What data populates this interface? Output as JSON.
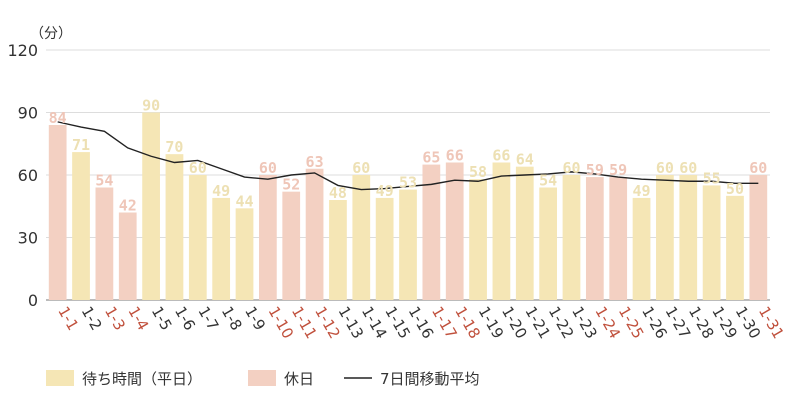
{
  "chart_data": {
    "type": "bar",
    "unit_label": "（分）",
    "ylim": [
      0,
      120
    ],
    "yticks": [
      "0",
      "30",
      "60",
      "90",
      "120"
    ],
    "grid": true,
    "categories": [
      "1-1",
      "1-2",
      "1-3",
      "1-4",
      "1-5",
      "1-6",
      "1-7",
      "1-8",
      "1-9",
      "1-10",
      "1-11",
      "1-12",
      "1-13",
      "1-14",
      "1-15",
      "1-16",
      "1-17",
      "1-18",
      "1-19",
      "1-20",
      "1-21",
      "1-22",
      "1-23",
      "1-24",
      "1-25",
      "1-26",
      "1-27",
      "1-28",
      "1-29",
      "1-30",
      "1-31"
    ],
    "values": [
      84,
      71,
      54,
      42,
      90,
      70,
      60,
      49,
      44,
      60,
      52,
      63,
      48,
      60,
      49,
      53,
      65,
      66,
      58,
      66,
      64,
      54,
      60,
      59,
      59,
      49,
      60,
      60,
      55,
      50,
      60
    ],
    "holiday": [
      true,
      false,
      true,
      true,
      false,
      false,
      false,
      false,
      false,
      true,
      true,
      true,
      false,
      false,
      false,
      false,
      true,
      true,
      false,
      false,
      false,
      false,
      false,
      true,
      true,
      false,
      false,
      false,
      false,
      false,
      true
    ],
    "moving_average": [
      85.5,
      83,
      81,
      73,
      69,
      66,
      67,
      63,
      59,
      58,
      60,
      61,
      55,
      53,
      53.5,
      54.5,
      55.5,
      57.5,
      57,
      59.5,
      60,
      60.5,
      61.5,
      60.5,
      59,
      58,
      57.5,
      57,
      57,
      56,
      56
    ],
    "legend": [
      {
        "label": "待ち時間（平日）",
        "kind": "bar-weekday"
      },
      {
        "label": "休日",
        "kind": "bar-holiday"
      },
      {
        "label": "7日間移動平均",
        "kind": "line"
      }
    ],
    "legend_position": "bottom-left",
    "colors": {
      "weekday": "#f5e6b5",
      "holiday": "#f3d0c2",
      "line": "#222222",
      "weekday_text": "#ede0b3",
      "holiday_text": "#efc6b8",
      "category_weekday": "#333333",
      "category_holiday": "#c0503c",
      "grid": "#dddddd",
      "axis": "#777777"
    }
  }
}
